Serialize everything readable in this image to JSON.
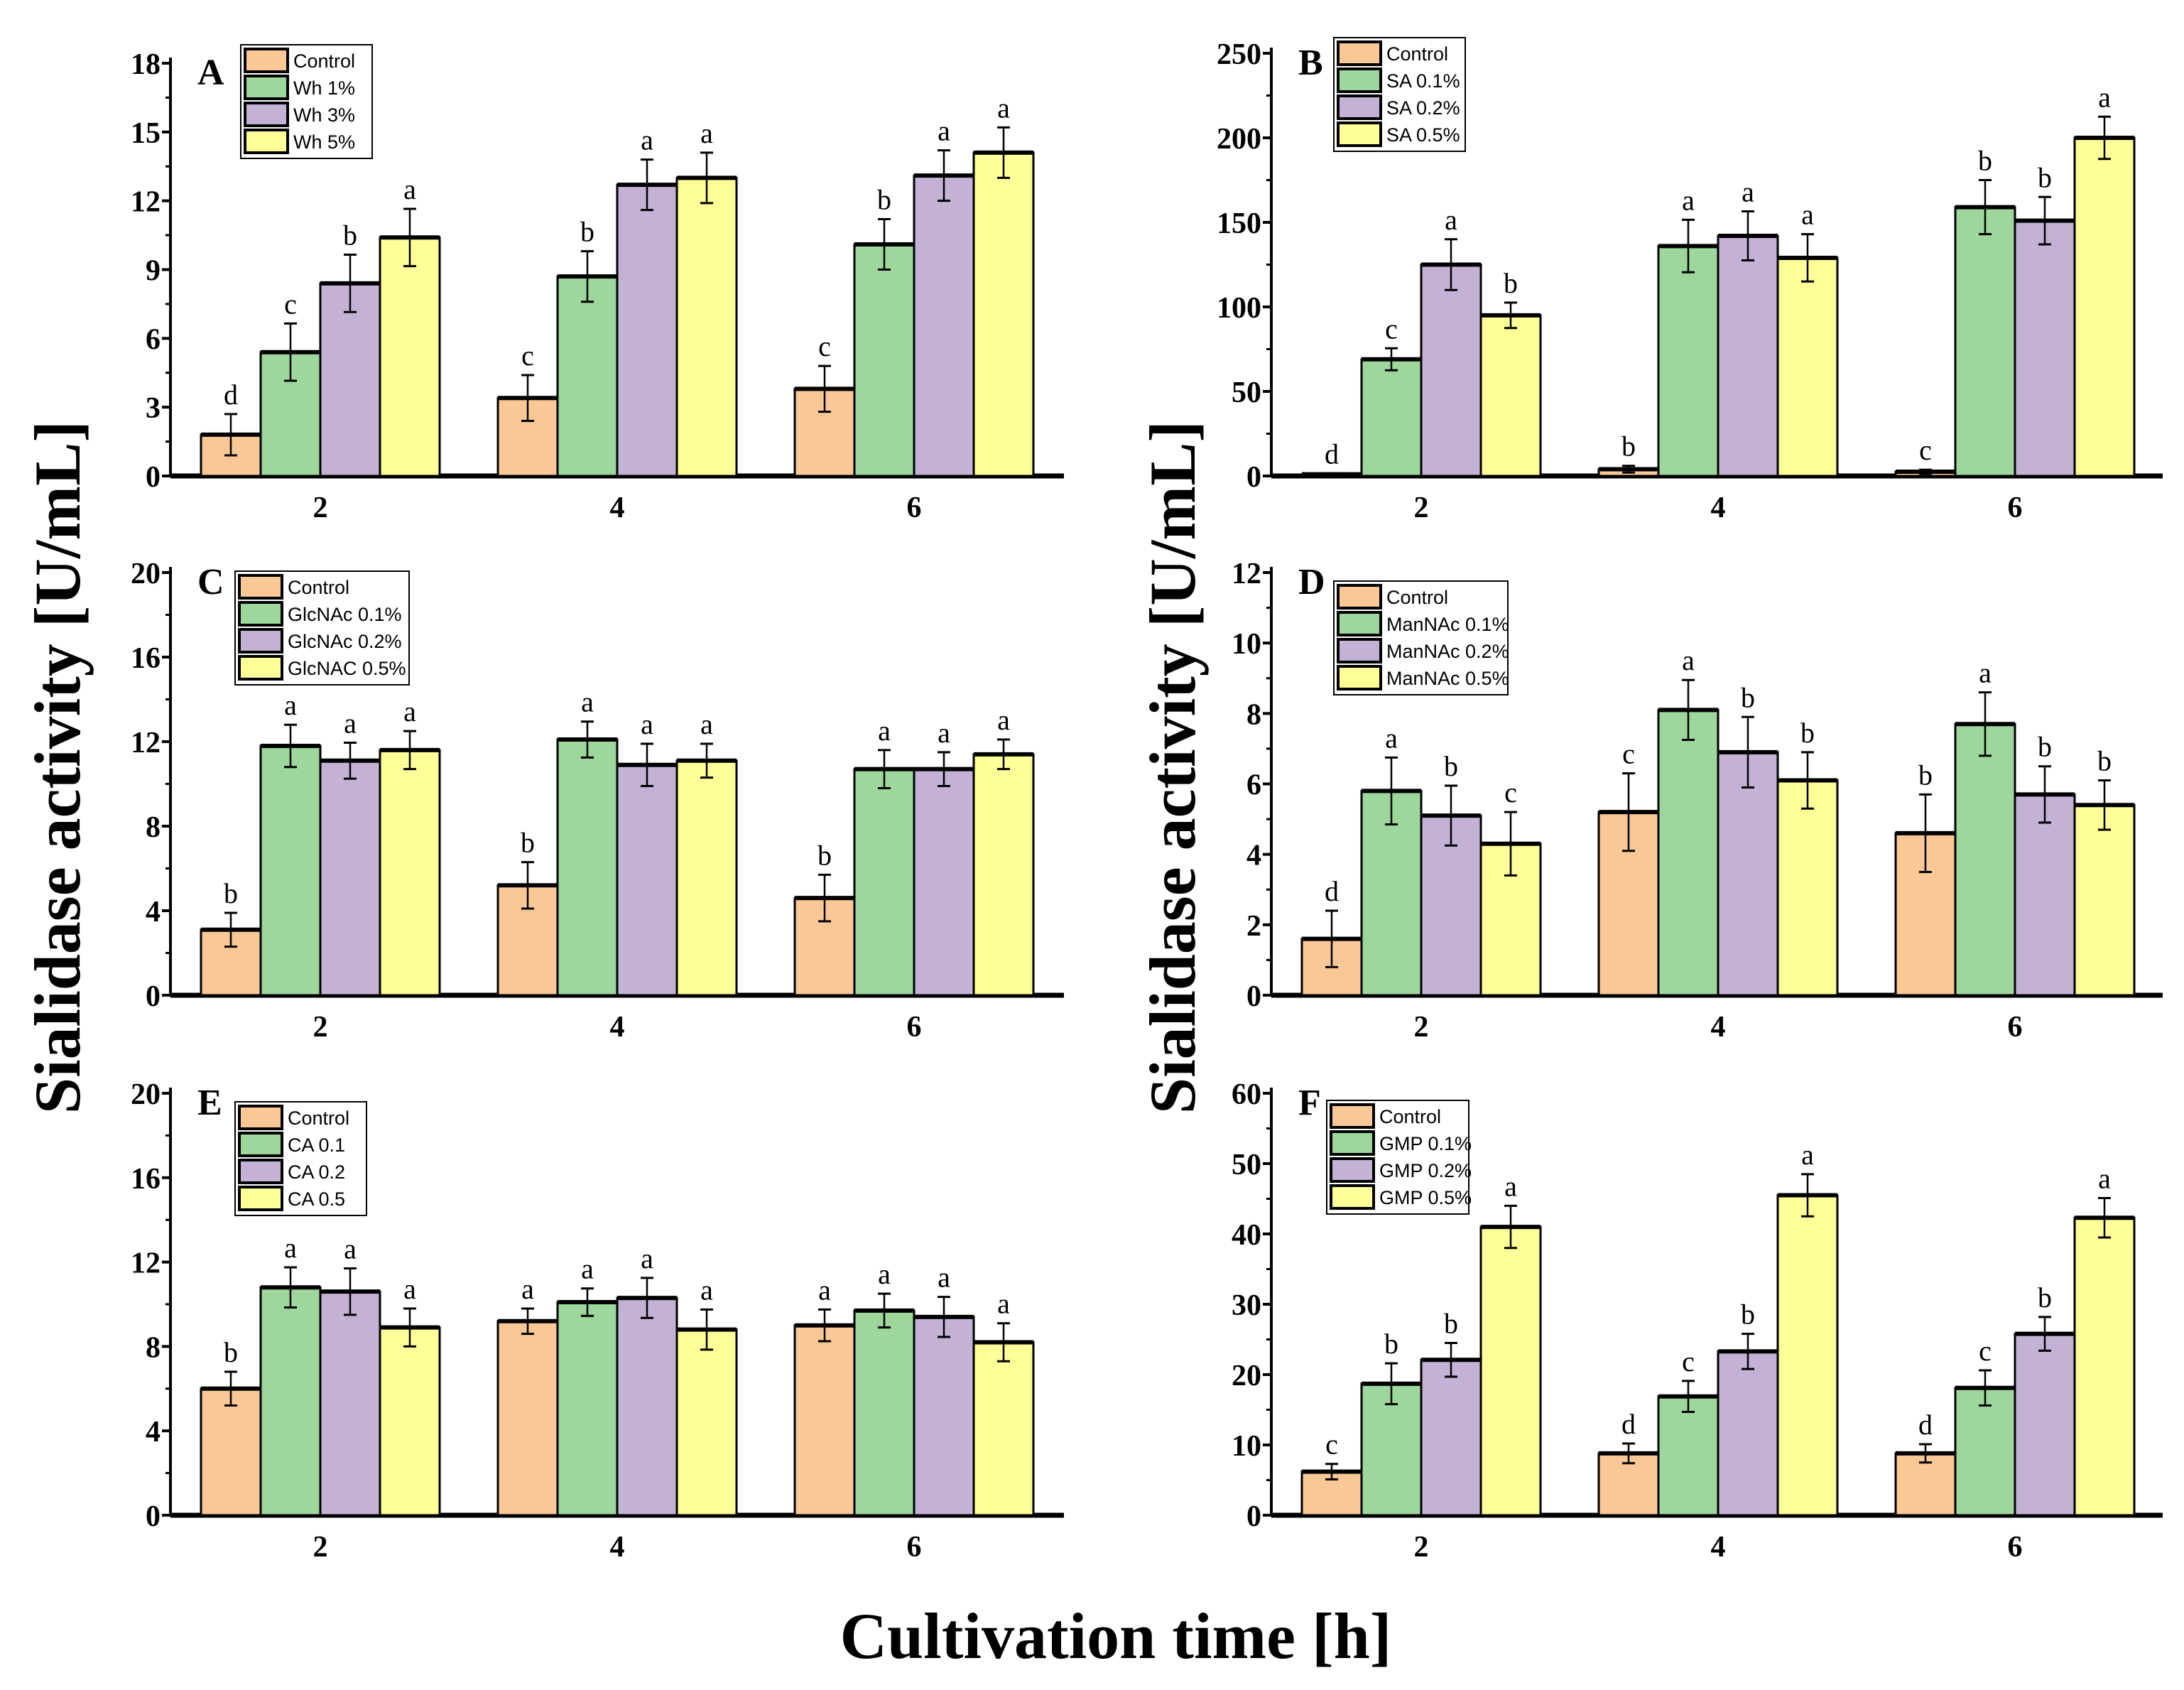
{
  "figure": {
    "ylabel": "Sialidase activity [U/mL]",
    "xlabel": "Cultivation time [h]"
  },
  "colors": [
    "#F9C896",
    "#9ED79B",
    "#C3B2D6",
    "#FFFF99"
  ],
  "chart_data": [
    {
      "type": "bar",
      "panel": "A",
      "categories": [
        "2",
        "4",
        "6"
      ],
      "ylim": [
        0,
        18
      ],
      "yticks": [
        0,
        3,
        6,
        9,
        12,
        15,
        18
      ],
      "series": [
        {
          "name": "Control",
          "values": [
            1.8,
            3.4,
            3.8
          ],
          "errors": [
            0.9,
            1.0,
            1.0
          ],
          "letters": [
            "d",
            "c",
            "c"
          ]
        },
        {
          "name": "Wh 1%",
          "values": [
            5.4,
            8.7,
            10.1
          ],
          "errors": [
            1.25,
            1.1,
            1.1
          ],
          "letters": [
            "c",
            "b",
            "b"
          ]
        },
        {
          "name": "Wh 3%",
          "values": [
            8.4,
            12.7,
            13.1
          ],
          "errors": [
            1.25,
            1.1,
            1.1
          ],
          "letters": [
            "b",
            "a",
            "a"
          ]
        },
        {
          "name": "Wh 5%",
          "values": [
            10.4,
            13.0,
            14.1
          ],
          "errors": [
            1.25,
            1.1,
            1.1
          ],
          "letters": [
            "a",
            "a",
            "a"
          ]
        }
      ]
    },
    {
      "type": "bar",
      "panel": "B",
      "categories": [
        "2",
        "4",
        "6"
      ],
      "ylim": [
        0,
        250
      ],
      "yticks": [
        0,
        50,
        100,
        150,
        200,
        250
      ],
      "series": [
        {
          "name": "Control",
          "values": [
            1,
            4,
            2.5
          ],
          "errors": [
            0.5,
            2,
            1.2
          ],
          "letters": [
            "d",
            "b",
            "c"
          ]
        },
        {
          "name": "SA 0.1%",
          "values": [
            69,
            136,
            159
          ],
          "errors": [
            6.5,
            15.5,
            16
          ],
          "letters": [
            "c",
            "a",
            "b"
          ]
        },
        {
          "name": "SA 0.2%",
          "values": [
            125,
            142,
            151
          ],
          "errors": [
            15,
            14.5,
            14
          ],
          "letters": [
            "a",
            "a",
            "b"
          ]
        },
        {
          "name": "SA 0.5%",
          "values": [
            95,
            129,
            200
          ],
          "errors": [
            7.5,
            14,
            12.5
          ],
          "letters": [
            "b",
            "a",
            "a"
          ]
        }
      ]
    },
    {
      "type": "bar",
      "panel": "C",
      "categories": [
        "2",
        "4",
        "6"
      ],
      "ylim": [
        0,
        20
      ],
      "yticks": [
        0,
        4,
        8,
        12,
        16,
        20
      ],
      "series": [
        {
          "name": "Control",
          "values": [
            3.1,
            5.2,
            4.6
          ],
          "errors": [
            0.8,
            1.1,
            1.1
          ],
          "letters": [
            "b",
            "b",
            "b"
          ]
        },
        {
          "name": "GlcNAc 0.1%",
          "values": [
            11.8,
            12.1,
            10.7
          ],
          "errors": [
            1.0,
            0.85,
            0.9
          ],
          "letters": [
            "a",
            "a",
            "a"
          ]
        },
        {
          "name": "GlcNAc 0.2%",
          "values": [
            11.1,
            10.9,
            10.7
          ],
          "errors": [
            0.85,
            1.0,
            0.8
          ],
          "letters": [
            "a",
            "a",
            "a"
          ]
        },
        {
          "name": "GlcNAC 0.5%",
          "values": [
            11.6,
            11.1,
            11.4
          ],
          "errors": [
            0.9,
            0.8,
            0.7
          ],
          "letters": [
            "a",
            "a",
            "a"
          ]
        }
      ]
    },
    {
      "type": "bar",
      "panel": "D",
      "categories": [
        "2",
        "4",
        "6"
      ],
      "ylim": [
        0,
        12
      ],
      "yticks": [
        0,
        2,
        4,
        6,
        8,
        10,
        12
      ],
      "series": [
        {
          "name": "Control",
          "values": [
            1.6,
            5.2,
            4.6
          ],
          "errors": [
            0.8,
            1.1,
            1.1
          ],
          "letters": [
            "d",
            "c",
            "b"
          ]
        },
        {
          "name": "ManNAc 0.1%",
          "values": [
            5.8,
            8.1,
            7.7
          ],
          "errors": [
            0.95,
            0.85,
            0.9
          ],
          "letters": [
            "a",
            "a",
            "a"
          ]
        },
        {
          "name": "ManNAc 0.2%",
          "values": [
            5.1,
            6.9,
            5.7
          ],
          "errors": [
            0.85,
            1.0,
            0.8
          ],
          "letters": [
            "b",
            "b",
            "b"
          ]
        },
        {
          "name": "ManNAc 0.5%",
          "values": [
            4.3,
            6.1,
            5.4
          ],
          "errors": [
            0.9,
            0.8,
            0.7
          ],
          "letters": [
            "c",
            "b",
            "b"
          ]
        }
      ]
    },
    {
      "type": "bar",
      "panel": "E",
      "categories": [
        "2",
        "4",
        "6"
      ],
      "ylim": [
        0,
        20
      ],
      "yticks": [
        0,
        4,
        8,
        12,
        16,
        20
      ],
      "series": [
        {
          "name": "Control",
          "values": [
            6.0,
            9.2,
            9.0
          ],
          "errors": [
            0.8,
            0.6,
            0.75
          ],
          "letters": [
            "b",
            "a",
            "a"
          ]
        },
        {
          "name": "CA 0.1",
          "values": [
            10.8,
            10.1,
            9.7
          ],
          "errors": [
            0.95,
            0.65,
            0.8
          ],
          "letters": [
            "a",
            "a",
            "a"
          ]
        },
        {
          "name": "CA 0.2",
          "values": [
            10.6,
            10.3,
            9.4
          ],
          "errors": [
            1.1,
            0.95,
            0.95
          ],
          "letters": [
            "a",
            "a",
            "a"
          ]
        },
        {
          "name": "CA 0.5",
          "values": [
            8.9,
            8.8,
            8.2
          ],
          "errors": [
            0.9,
            0.95,
            0.9
          ],
          "letters": [
            "a",
            "a",
            "a"
          ]
        }
      ]
    },
    {
      "type": "bar",
      "panel": "F",
      "categories": [
        "2",
        "4",
        "6"
      ],
      "ylim": [
        0,
        60
      ],
      "yticks": [
        0,
        10,
        20,
        30,
        40,
        50,
        60
      ],
      "series": [
        {
          "name": "Control",
          "values": [
            6.2,
            8.8,
            8.8
          ],
          "errors": [
            1.1,
            1.4,
            1.3
          ],
          "letters": [
            "c",
            "d",
            "d"
          ]
        },
        {
          "name": "GMP 0.1%",
          "values": [
            18.7,
            16.9,
            18.1
          ],
          "errors": [
            2.9,
            2.2,
            2.5
          ],
          "letters": [
            "b",
            "c",
            "c"
          ]
        },
        {
          "name": "GMP 0.2%",
          "values": [
            22.1,
            23.3,
            25.8
          ],
          "errors": [
            2.4,
            2.5,
            2.4
          ],
          "letters": [
            "b",
            "b",
            "b"
          ]
        },
        {
          "name": "GMP 0.5%",
          "values": [
            41.0,
            45.5,
            42.3
          ],
          "errors": [
            3.0,
            3.0,
            2.8
          ],
          "letters": [
            "a",
            "a",
            "a"
          ]
        }
      ]
    }
  ]
}
